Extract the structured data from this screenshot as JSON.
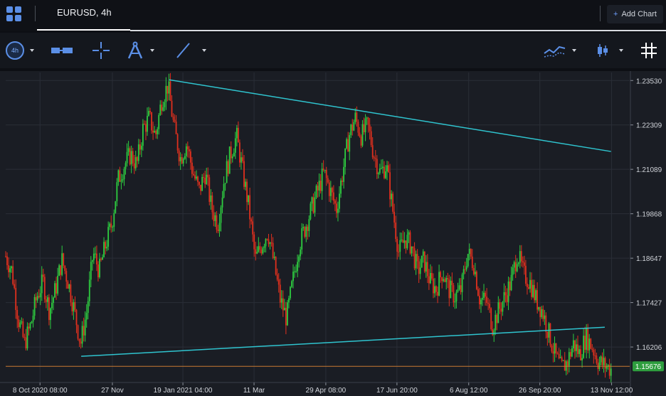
{
  "tabs": [
    {
      "label": "EURUSD, 4h",
      "active": true
    }
  ],
  "add_chart": {
    "plus": "+",
    "label": "Add Chart"
  },
  "toolbar": {
    "timeframe_badge": "4h",
    "tools": [
      "timeframe-selector",
      "range-tool",
      "crosshair-tool",
      "fibonacci-tool",
      "trendline-tool",
      "indicators-tool",
      "chart-type-tool",
      "grid-toggle"
    ]
  },
  "colors": {
    "background": "#1a1d24",
    "grid": "#2a2e37",
    "up_candle": "#2ecc40",
    "down_candle": "#e0301e",
    "trendline": "#2fc4cf",
    "price_line": "#c87a32",
    "price_badge": "#2e9e3e"
  },
  "chart_data": {
    "type": "candlestick",
    "symbol": "EURUSD",
    "interval": "4h",
    "ylim": [
      1.1525,
      1.2375
    ],
    "grid": true,
    "y_ticks": [
      {
        "value": 1.2353,
        "label": "1.23530"
      },
      {
        "value": 1.22309,
        "label": "1.22309"
      },
      {
        "value": 1.21089,
        "label": "1.21089"
      },
      {
        "value": 1.19868,
        "label": "1.19868"
      },
      {
        "value": 1.18647,
        "label": "1.18647"
      },
      {
        "value": 1.17427,
        "label": "1.17427"
      },
      {
        "value": 1.16206,
        "label": "1.16206"
      }
    ],
    "x_ticks": [
      {
        "t": 0.055,
        "label": "8 Oct 2020 08:00"
      },
      {
        "t": 0.171,
        "label": "27 Nov"
      },
      {
        "t": 0.284,
        "label": "19 Jan 2021 04:00"
      },
      {
        "t": 0.398,
        "label": "11 Mar"
      },
      {
        "t": 0.513,
        "label": "29 Apr 08:00"
      },
      {
        "t": 0.627,
        "label": "17 Jun 20:00"
      },
      {
        "t": 0.742,
        "label": "6 Aug 12:00"
      },
      {
        "t": 0.856,
        "label": "26 Sep 20:00"
      },
      {
        "t": 0.971,
        "label": "13 Nov 12:00"
      }
    ],
    "current_price": {
      "value": 1.15676,
      "label": "1.15676"
    },
    "price_path": [
      [
        0.0,
        1.187
      ],
      [
        0.01,
        1.183
      ],
      [
        0.02,
        1.17
      ],
      [
        0.03,
        1.163
      ],
      [
        0.04,
        1.168
      ],
      [
        0.05,
        1.176
      ],
      [
        0.06,
        1.18
      ],
      [
        0.07,
        1.172
      ],
      [
        0.08,
        1.178
      ],
      [
        0.09,
        1.186
      ],
      [
        0.1,
        1.18
      ],
      [
        0.11,
        1.172
      ],
      [
        0.12,
        1.163
      ],
      [
        0.13,
        1.172
      ],
      [
        0.14,
        1.188
      ],
      [
        0.15,
        1.183
      ],
      [
        0.16,
        1.19
      ],
      [
        0.17,
        1.196
      ],
      [
        0.18,
        1.208
      ],
      [
        0.19,
        1.212
      ],
      [
        0.2,
        1.215
      ],
      [
        0.21,
        1.212
      ],
      [
        0.22,
        1.222
      ],
      [
        0.23,
        1.225
      ],
      [
        0.24,
        1.22
      ],
      [
        0.25,
        1.23
      ],
      [
        0.26,
        1.234
      ],
      [
        0.27,
        1.222
      ],
      [
        0.28,
        1.214
      ],
      [
        0.29,
        1.218
      ],
      [
        0.3,
        1.21
      ],
      [
        0.31,
        1.205
      ],
      [
        0.32,
        1.21
      ],
      [
        0.33,
        1.2
      ],
      [
        0.34,
        1.196
      ],
      [
        0.35,
        1.208
      ],
      [
        0.36,
        1.215
      ],
      [
        0.37,
        1.22
      ],
      [
        0.38,
        1.21
      ],
      [
        0.39,
        1.2
      ],
      [
        0.4,
        1.186
      ],
      [
        0.41,
        1.19
      ],
      [
        0.42,
        1.194
      ],
      [
        0.43,
        1.185
      ],
      [
        0.44,
        1.175
      ],
      [
        0.45,
        1.17
      ],
      [
        0.46,
        1.18
      ],
      [
        0.47,
        1.19
      ],
      [
        0.48,
        1.195
      ],
      [
        0.49,
        1.2
      ],
      [
        0.5,
        1.205
      ],
      [
        0.51,
        1.21
      ],
      [
        0.52,
        1.205
      ],
      [
        0.53,
        1.2
      ],
      [
        0.54,
        1.21
      ],
      [
        0.55,
        1.22
      ],
      [
        0.56,
        1.225
      ],
      [
        0.57,
        1.22
      ],
      [
        0.58,
        1.223
      ],
      [
        0.59,
        1.215
      ],
      [
        0.6,
        1.21
      ],
      [
        0.61,
        1.212
      ],
      [
        0.62,
        1.2
      ],
      [
        0.63,
        1.188
      ],
      [
        0.64,
        1.192
      ],
      [
        0.65,
        1.19
      ],
      [
        0.66,
        1.183
      ],
      [
        0.67,
        1.186
      ],
      [
        0.68,
        1.18
      ],
      [
        0.69,
        1.178
      ],
      [
        0.7,
        1.183
      ],
      [
        0.71,
        1.178
      ],
      [
        0.72,
        1.176
      ],
      [
        0.73,
        1.178
      ],
      [
        0.74,
        1.188
      ],
      [
        0.75,
        1.185
      ],
      [
        0.76,
        1.175
      ],
      [
        0.77,
        1.175
      ],
      [
        0.78,
        1.168
      ],
      [
        0.79,
        1.172
      ],
      [
        0.8,
        1.176
      ],
      [
        0.81,
        1.18
      ],
      [
        0.82,
        1.188
      ],
      [
        0.83,
        1.182
      ],
      [
        0.84,
        1.18
      ],
      [
        0.85,
        1.175
      ],
      [
        0.86,
        1.172
      ],
      [
        0.87,
        1.166
      ],
      [
        0.88,
        1.16
      ],
      [
        0.89,
        1.156
      ],
      [
        0.9,
        1.158
      ],
      [
        0.91,
        1.163
      ],
      [
        0.92,
        1.16
      ],
      [
        0.93,
        1.165
      ],
      [
        0.94,
        1.162
      ],
      [
        0.95,
        1.158
      ],
      [
        0.96,
        1.157
      ],
      [
        0.97,
        1.156
      ]
    ],
    "trendlines": [
      {
        "name": "upper-trendline",
        "from": [
          0.262,
          1.2355
        ],
        "to": [
          0.97,
          1.2158
        ]
      },
      {
        "name": "lower-trendline",
        "from": [
          0.121,
          1.1595
        ],
        "to": [
          0.96,
          1.1675
        ]
      }
    ]
  }
}
